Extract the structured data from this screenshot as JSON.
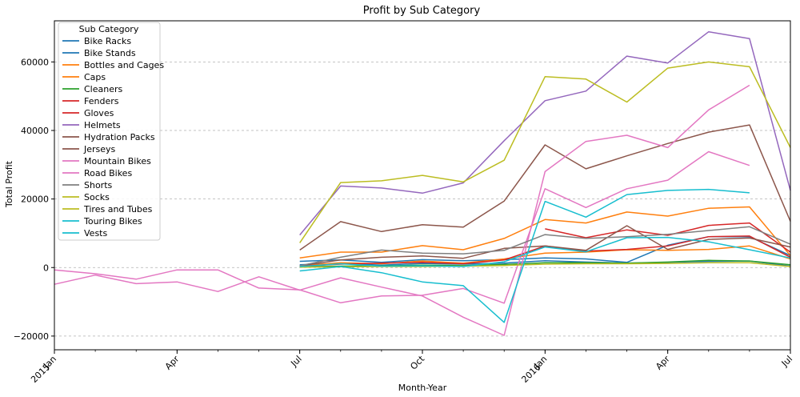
{
  "chart_data": {
    "type": "line",
    "title": "Profit by Sub Category",
    "xlabel": "Month-Year",
    "ylabel": "Total Profit",
    "legend_title": "Sub Category",
    "legend_position": "upper-left",
    "grid": "y-dashed",
    "ylim": [
      -24000,
      72000
    ],
    "xlim": [
      "2015-01",
      "2016-07"
    ],
    "y_ticks": [
      -20000,
      0,
      20000,
      40000,
      60000
    ],
    "x_ticks": [
      {
        "month": "2015-01",
        "label": "Jan",
        "sublabel": "2015"
      },
      {
        "month": "2015-04",
        "label": "Apr",
        "sublabel": ""
      },
      {
        "month": "2015-07",
        "label": "Jul",
        "sublabel": ""
      },
      {
        "month": "2015-10",
        "label": "Oct",
        "sublabel": ""
      },
      {
        "month": "2016-01",
        "label": "Jan",
        "sublabel": "2016"
      },
      {
        "month": "2016-04",
        "label": "Apr",
        "sublabel": ""
      },
      {
        "month": "2016-07",
        "label": "Jul",
        "sublabel": ""
      }
    ],
    "months": [
      "2015-01",
      "2015-02",
      "2015-03",
      "2015-04",
      "2015-05",
      "2015-06",
      "2015-07",
      "2015-08",
      "2015-09",
      "2015-10",
      "2015-11",
      "2015-12",
      "2016-01",
      "2016-02",
      "2016-03",
      "2016-04",
      "2016-05",
      "2016-06",
      "2016-07"
    ],
    "series": [
      {
        "name": "Bike Racks",
        "color": "#1f77b4",
        "values": [
          null,
          null,
          null,
          null,
          null,
          null,
          1800,
          2200,
          1500,
          2300,
          2000,
          2300,
          2800,
          2500,
          1500,
          6500,
          9000,
          9000,
          3500
        ]
      },
      {
        "name": "Bike Stands",
        "color": "#1f77b4",
        "values": [
          null,
          null,
          null,
          null,
          null,
          null,
          800,
          1200,
          700,
          1200,
          1000,
          1300,
          2000,
          1600,
          1300,
          1500,
          1800,
          1900,
          400
        ]
      },
      {
        "name": "Bottles and Cages",
        "color": "#ff7f0e",
        "values": [
          null,
          null,
          null,
          null,
          null,
          null,
          2800,
          4500,
          4500,
          6400,
          5200,
          8500,
          14000,
          13000,
          16200,
          15000,
          17300,
          17700,
          3500
        ]
      },
      {
        "name": "Caps",
        "color": "#ff7f0e",
        "values": [
          null,
          null,
          null,
          null,
          null,
          null,
          500,
          1400,
          1100,
          1900,
          1300,
          2500,
          4200,
          4500,
          5200,
          5000,
          5300,
          6300,
          2500
        ]
      },
      {
        "name": "Cleaners",
        "color": "#2ca02c",
        "values": [
          null,
          null,
          null,
          null,
          null,
          null,
          200,
          400,
          500,
          700,
          600,
          900,
          1400,
          1400,
          1300,
          1600,
          2100,
          1900,
          800
        ]
      },
      {
        "name": "Fenders",
        "color": "#d62728",
        "values": [
          null,
          null,
          null,
          null,
          null,
          null,
          null,
          null,
          null,
          null,
          null,
          null,
          11300,
          8700,
          11000,
          9400,
          12300,
          13000,
          4500
        ]
      },
      {
        "name": "Gloves",
        "color": "#d62728",
        "values": [
          null,
          null,
          null,
          null,
          null,
          null,
          400,
          1000,
          1300,
          1500,
          1100,
          2200,
          6300,
          4800,
          5300,
          6300,
          9000,
          9200,
          3000
        ]
      },
      {
        "name": "Helmets",
        "color": "#9467bd",
        "values": [
          null,
          null,
          null,
          null,
          null,
          null,
          9500,
          23800,
          23200,
          21700,
          24700,
          37000,
          48700,
          51500,
          61700,
          59700,
          68800,
          66800,
          22500
        ]
      },
      {
        "name": "Hydration Packs",
        "color": "#8c564b",
        "values": [
          null,
          null,
          null,
          null,
          null,
          null,
          5100,
          13400,
          10500,
          12500,
          11800,
          19400,
          35800,
          28800,
          32600,
          36200,
          39500,
          41600,
          13500
        ]
      },
      {
        "name": "Jerseys",
        "color": "#8c564b",
        "values": [
          null,
          null,
          null,
          null,
          null,
          null,
          500,
          2200,
          3000,
          3400,
          2700,
          5600,
          6300,
          5000,
          12200,
          5300,
          8200,
          8600,
          6000
        ]
      },
      {
        "name": "Mountain Bikes",
        "color": "#e377c2",
        "values": [
          -4900,
          -2200,
          -4700,
          -4200,
          -7000,
          -2700,
          -6600,
          -3000,
          -5700,
          -8300,
          -14500,
          -19800,
          28000,
          36800,
          38600,
          35000,
          46000,
          53200,
          null
        ]
      },
      {
        "name": "Road Bikes",
        "color": "#e377c2",
        "values": [
          -700,
          -1800,
          -3400,
          -700,
          -700,
          -6000,
          -6500,
          -10300,
          -8300,
          -8100,
          -6100,
          -10400,
          23000,
          17500,
          23000,
          25500,
          33800,
          29800,
          null
        ]
      },
      {
        "name": "Shorts",
        "color": "#7f7f7f",
        "values": [
          null,
          null,
          null,
          null,
          null,
          null,
          500,
          3000,
          5100,
          4200,
          4000,
          5000,
          9600,
          8500,
          9000,
          9700,
          10800,
          11900,
          6800
        ]
      },
      {
        "name": "Socks",
        "color": "#bcbd22",
        "values": [
          null,
          null,
          null,
          null,
          null,
          null,
          100,
          200,
          300,
          300,
          400,
          600,
          1000,
          1100,
          1100,
          1200,
          1400,
          1400,
          300
        ]
      },
      {
        "name": "Tires and Tubes",
        "color": "#bcbd22",
        "values": [
          null,
          null,
          null,
          null,
          null,
          null,
          7200,
          24800,
          25300,
          26900,
          25000,
          31300,
          55700,
          55000,
          48300,
          58200,
          60000,
          58600,
          35000
        ]
      },
      {
        "name": "Touring Bikes",
        "color": "#17becf",
        "values": [
          null,
          null,
          null,
          null,
          null,
          null,
          -1000,
          300,
          -1500,
          -4200,
          -5300,
          -16000,
          19300,
          14700,
          21300,
          22500,
          22800,
          21800,
          null
        ]
      },
      {
        "name": "Vests",
        "color": "#17becf",
        "values": [
          null,
          null,
          null,
          null,
          null,
          null,
          300,
          1100,
          400,
          500,
          300,
          1700,
          6000,
          4600,
          8700,
          8800,
          7500,
          5200,
          2800
        ]
      }
    ]
  }
}
